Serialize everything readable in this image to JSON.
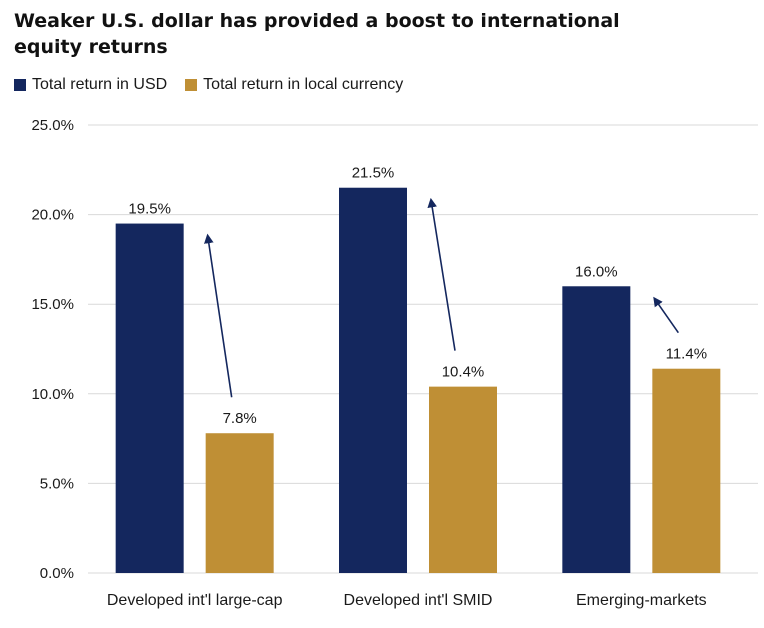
{
  "colors": {
    "usd": "#14275e",
    "local": "#bf8f35",
    "grid": "#d9d9d9",
    "arrow": "#14275e"
  },
  "chart_data": {
    "type": "bar",
    "title": "Weaker U.S. dollar has provided a boost to international equity returns",
    "categories": [
      "Developed int'l large-cap",
      "Developed int'l SMID",
      "Emerging-markets"
    ],
    "series": [
      {
        "name": "Total return in USD",
        "values": [
          19.5,
          21.5,
          16.0
        ],
        "labels": [
          "19.5%",
          "21.5%",
          "16.0%"
        ]
      },
      {
        "name": "Total return in local currency",
        "values": [
          7.8,
          10.4,
          11.4
        ],
        "labels": [
          "7.8%",
          "10.4%",
          "11.4%"
        ]
      }
    ],
    "ylim": [
      0,
      25
    ],
    "yticks": [
      "0.0%",
      "5.0%",
      "10.0%",
      "15.0%",
      "20.0%",
      "25.0%"
    ],
    "grid": true,
    "legend": "top-left",
    "annotations": "arrows from local-currency bar up to USD bar in each group"
  }
}
